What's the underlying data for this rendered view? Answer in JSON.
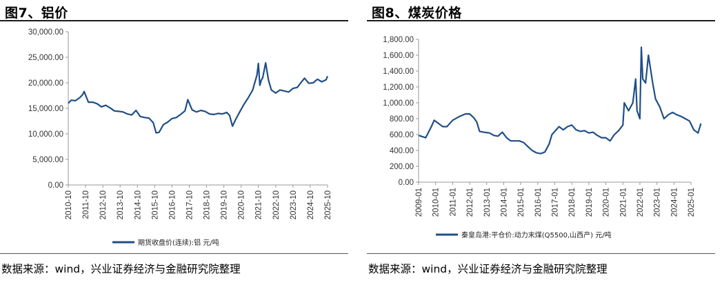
{
  "source_text": "数据来源：wind，兴业证券经济与金融研究院整理",
  "colors": {
    "series": "#1f4e87",
    "axis": "#999999"
  },
  "chart_data": [
    {
      "type": "line",
      "title": "图7、铝价",
      "legend": "期货收盘价(连续):铝  元/吨",
      "legend_position": "bottom",
      "grid": false,
      "ylim": [
        0,
        30000
      ],
      "yticks": [
        "0.00",
        "5,000.00",
        "10,000.00",
        "15,000.00",
        "20,000.00",
        "25,000.00",
        "30,000.00"
      ],
      "xticks": [
        "2010-10",
        "2011-10",
        "2012-10",
        "2013-10",
        "2014-10",
        "2015-10",
        "2016-10",
        "2017-10",
        "2018-10",
        "2019-10",
        "2020-10",
        "2021-10",
        "2022-10",
        "2023-10",
        "2024-10",
        "2025-10"
      ],
      "series": [
        {
          "name": "期货收盘价(连续):铝  元/吨",
          "x": [
            "2010-10",
            "2010-12",
            "2011-03",
            "2011-06",
            "2011-08",
            "2011-09",
            "2011-12",
            "2012-03",
            "2012-06",
            "2012-09",
            "2012-12",
            "2013-03",
            "2013-06",
            "2013-09",
            "2013-12",
            "2014-03",
            "2014-06",
            "2014-09",
            "2014-12",
            "2015-03",
            "2015-06",
            "2015-09",
            "2015-11",
            "2016-01",
            "2016-04",
            "2016-07",
            "2016-10",
            "2017-01",
            "2017-04",
            "2017-07",
            "2017-09",
            "2017-12",
            "2018-03",
            "2018-06",
            "2018-09",
            "2018-12",
            "2019-03",
            "2019-06",
            "2019-09",
            "2019-12",
            "2020-02",
            "2020-04",
            "2020-06",
            "2020-09",
            "2020-12",
            "2021-03",
            "2021-06",
            "2021-09",
            "2021-10",
            "2021-11",
            "2021-12",
            "2022-01",
            "2022-03",
            "2022-05",
            "2022-07",
            "2022-10",
            "2023-01",
            "2023-04",
            "2023-07",
            "2023-10",
            "2024-01",
            "2024-04",
            "2024-06",
            "2024-09",
            "2024-12",
            "2025-03",
            "2025-06",
            "2025-09",
            "2025-10"
          ],
          "y": [
            16000,
            16600,
            16500,
            17100,
            17700,
            18300,
            16200,
            16200,
            15900,
            15300,
            15600,
            15100,
            14500,
            14400,
            14300,
            13900,
            13700,
            14600,
            13400,
            13200,
            13100,
            12200,
            10200,
            10300,
            11800,
            12300,
            13000,
            13200,
            13800,
            14500,
            16700,
            14700,
            14300,
            14600,
            14400,
            13900,
            13800,
            14000,
            13900,
            14200,
            13600,
            11500,
            12700,
            14300,
            15800,
            17100,
            18600,
            21500,
            23800,
            19500,
            20500,
            21000,
            23900,
            20500,
            18600,
            18000,
            18600,
            18400,
            18200,
            18900,
            19100,
            20200,
            20900,
            19900,
            20000,
            20700,
            20200,
            20600,
            21300
          ]
        }
      ]
    },
    {
      "type": "line",
      "title": "图8、煤炭价格",
      "legend": "秦皇岛港:平仓价:动力末煤(Q5500,山西产)  元/吨",
      "legend_position": "bottom",
      "grid": false,
      "ylim": [
        0,
        1800
      ],
      "yticks": [
        "0.00",
        "200.00",
        "400.00",
        "600.00",
        "800.00",
        "1,000.00",
        "1,200.00",
        "1,400.00",
        "1,600.00",
        "1,800.00"
      ],
      "xticks": [
        "2009-01",
        "2010-01",
        "2011-01",
        "2012-01",
        "2013-01",
        "2014-01",
        "2015-01",
        "2016-01",
        "2017-01",
        "2018-01",
        "2019-01",
        "2020-01",
        "2021-01",
        "2022-01",
        "2023-01",
        "2024-01",
        "2025-01"
      ],
      "series": [
        {
          "name": "秦皇岛港:平仓价:动力末煤(Q5500,山西产)  元/吨",
          "x": [
            "2009-01",
            "2009-06",
            "2009-10",
            "2009-12",
            "2010-03",
            "2010-06",
            "2010-09",
            "2011-01",
            "2011-06",
            "2011-10",
            "2012-01",
            "2012-04",
            "2012-06",
            "2012-08",
            "2012-11",
            "2013-03",
            "2013-06",
            "2013-09",
            "2013-12",
            "2014-03",
            "2014-06",
            "2014-09",
            "2014-12",
            "2015-03",
            "2015-06",
            "2015-09",
            "2015-12",
            "2016-03",
            "2016-06",
            "2016-09",
            "2016-11",
            "2017-01",
            "2017-04",
            "2017-07",
            "2017-10",
            "2018-01",
            "2018-04",
            "2018-07",
            "2018-10",
            "2019-01",
            "2019-04",
            "2019-07",
            "2019-10",
            "2020-01",
            "2020-04",
            "2020-07",
            "2020-10",
            "2021-01",
            "2021-02",
            "2021-05",
            "2021-08",
            "2021-10",
            "2021-11",
            "2022-01",
            "2022-02",
            "2022-03",
            "2022-05",
            "2022-07",
            "2022-10",
            "2022-12",
            "2023-03",
            "2023-06",
            "2023-09",
            "2023-12",
            "2024-03",
            "2024-06",
            "2024-09",
            "2024-12",
            "2025-03",
            "2025-06",
            "2025-08"
          ],
          "y": [
            590,
            560,
            700,
            780,
            740,
            700,
            700,
            780,
            830,
            860,
            860,
            810,
            760,
            640,
            630,
            620,
            590,
            580,
            630,
            560,
            520,
            520,
            520,
            500,
            450,
            400,
            370,
            360,
            380,
            480,
            600,
            640,
            700,
            660,
            700,
            720,
            660,
            640,
            650,
            620,
            630,
            590,
            560,
            560,
            520,
            600,
            650,
            720,
            1000,
            900,
            1000,
            1300,
            900,
            800,
            1700,
            1300,
            1250,
            1600,
            1250,
            1050,
            950,
            800,
            850,
            880,
            850,
            830,
            800,
            770,
            660,
            620,
            740
          ]
        }
      ]
    }
  ]
}
